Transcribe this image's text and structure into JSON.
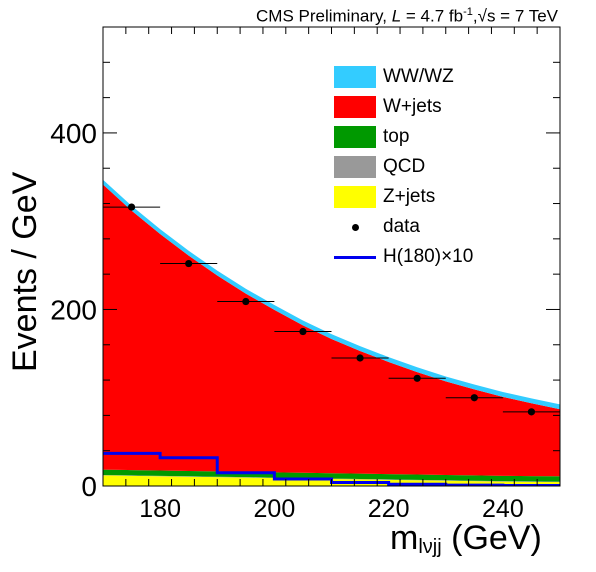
{
  "title": {
    "prefix": "CMS Preliminary, ",
    "lumi_symbol": "L",
    "lumi_text": " = 4.7 fb",
    "lumi_exp": "-1",
    "sep": ",",
    "sqrt": "√s",
    "energy": " = 7 TeV"
  },
  "axes": {
    "ylabel": "Events / GeV",
    "xlabel_main": "m",
    "xlabel_sub": "lνjj",
    "xlabel_unit": " (GeV)"
  },
  "legend": [
    {
      "label": "WW/WZ",
      "kind": "fill",
      "color": "#33ccff"
    },
    {
      "label": "W+jets",
      "kind": "fill",
      "color": "#ff0000"
    },
    {
      "label": "top",
      "kind": "fill",
      "color": "#009900"
    },
    {
      "label": "QCD",
      "kind": "fill",
      "color": "#999999"
    },
    {
      "label": "Z+jets",
      "kind": "fill",
      "color": "#ffff00"
    },
    {
      "label": "data",
      "kind": "marker",
      "color": "#000000"
    },
    {
      "label": "H(180)×10",
      "kind": "line",
      "color": "#0000ee"
    }
  ],
  "chart_data": {
    "type": "area",
    "xlim": [
      170,
      250
    ],
    "ylim": [
      0,
      520
    ],
    "xticks": [
      180,
      200,
      220,
      240
    ],
    "yticks": [
      0,
      200,
      400
    ],
    "x": [
      170,
      175,
      180,
      185,
      190,
      195,
      200,
      205,
      210,
      215,
      220,
      225,
      230,
      235,
      240,
      245,
      250
    ],
    "series": [
      {
        "name": "Z+jets",
        "color": "#ffff00",
        "values": [
          12,
          11.5,
          11,
          10.5,
          10,
          9.5,
          9,
          8.5,
          8,
          7.5,
          7,
          6.5,
          6,
          5.5,
          5,
          4.7,
          4.5
        ]
      },
      {
        "name": "QCD",
        "color": "#999999",
        "values": [
          0.5,
          0.5,
          0.5,
          0.5,
          0.5,
          0.5,
          0.5,
          0.5,
          0.5,
          0.5,
          0.5,
          0.5,
          0.5,
          0.5,
          0.5,
          0.5,
          0.5
        ]
      },
      {
        "name": "top",
        "color": "#009900",
        "values": [
          6,
          6,
          6,
          6,
          6,
          6,
          6,
          6,
          6,
          6,
          6,
          6,
          6,
          6,
          6,
          6,
          6
        ]
      },
      {
        "name": "W+jets",
        "color": "#ff0000",
        "values": [
          323,
          294,
          268,
          244,
          222,
          202,
          184,
          167,
          152,
          139,
          127,
          116,
          106,
          97.5,
          89.5,
          82.5,
          76
        ]
      },
      {
        "name": "WW/WZ",
        "color": "#33ccff",
        "values": [
          5.5,
          5.5,
          5.5,
          5.5,
          5.5,
          5.5,
          5.5,
          5.5,
          5.5,
          5.5,
          5.5,
          5.5,
          5.5,
          5.5,
          5.5,
          5.5,
          5.5
        ]
      }
    ],
    "data": {
      "name": "data",
      "x": [
        175,
        185,
        195,
        205,
        215,
        225,
        235,
        245
      ],
      "y": [
        316,
        252,
        209,
        175,
        145,
        122,
        100,
        84
      ],
      "xerr": 5,
      "yerr": [
        4,
        3.5,
        3,
        3,
        2.5,
        2.5,
        2,
        2
      ]
    },
    "signal": {
      "name": "H(180)×10",
      "color": "#0000ee",
      "bins": [
        170,
        180,
        190,
        200,
        210,
        220,
        230,
        240,
        250
      ],
      "values": [
        37,
        32,
        15,
        8,
        4,
        2,
        1,
        0.5
      ]
    }
  }
}
